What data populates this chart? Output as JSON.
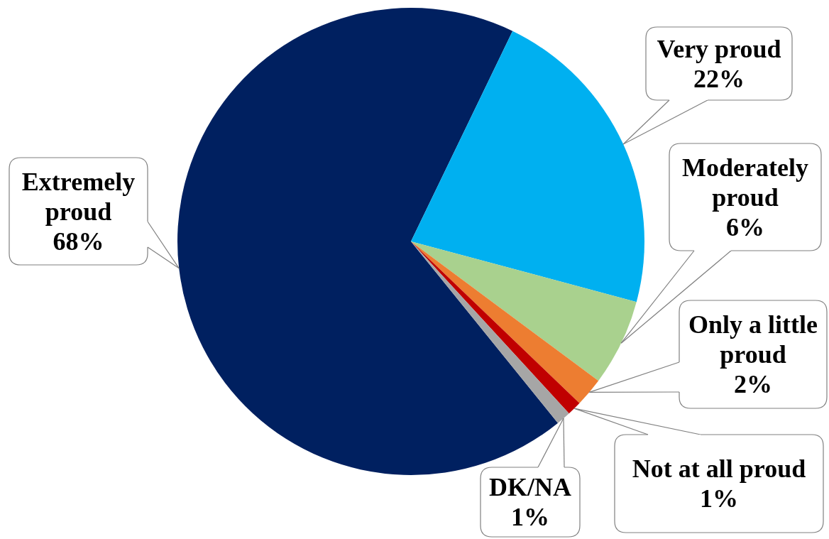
{
  "chart_data": {
    "type": "pie",
    "categories": [
      "Extremely proud",
      "Very proud",
      "Moderately proud",
      "Only a little proud",
      "Not at all proud",
      "DK/NA"
    ],
    "values": [
      68,
      22,
      6,
      2,
      1,
      1
    ],
    "colors": [
      "#002060",
      "#00b0f0",
      "#a9d18e",
      "#ed7d31",
      "#c00000",
      "#a6a6a6"
    ],
    "value_labels": [
      "68%",
      "22%",
      "6%",
      "2%",
      "1%",
      "1%"
    ]
  }
}
